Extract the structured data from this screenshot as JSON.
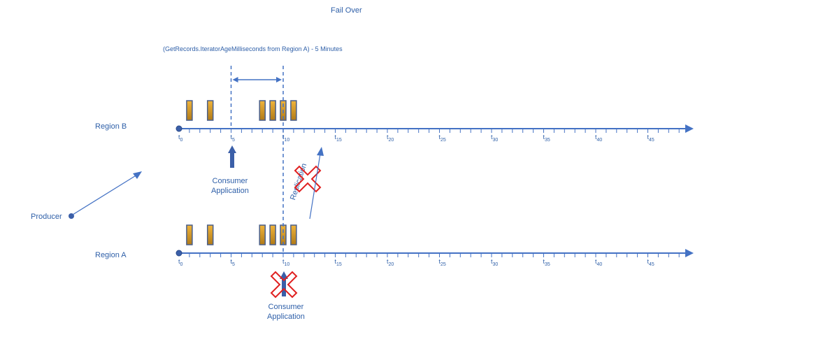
{
  "title": "Fail Over",
  "metric_note": "(GetRecords.IteratorAgeMilliseconds from Region A)  - 5 Minutes",
  "producer_label": "Producer",
  "replication_label": "Replication",
  "colors": {
    "line": "#4472c4",
    "text": "#2e5fa8",
    "record_fill_top": "#f0b43a",
    "record_fill_bottom": "#b07a18",
    "record_stroke": "#4a5f8a",
    "failure_x": "#e02020",
    "consumer_arrow": "#3b5fa8"
  },
  "timeline_labels": [
    {
      "t": "t",
      "sub": "0"
    },
    {
      "t": "t",
      "sub": "5"
    },
    {
      "t": "t",
      "sub": "10"
    },
    {
      "t": "t",
      "sub": "15"
    },
    {
      "t": "t",
      "sub": "20"
    },
    {
      "t": "t",
      "sub": "25"
    },
    {
      "t": "t",
      "sub": "30"
    },
    {
      "t": "t",
      "sub": "35"
    },
    {
      "t": "t",
      "sub": "40"
    },
    {
      "t": "t",
      "sub": "45"
    }
  ],
  "regions": [
    {
      "name": "Region B",
      "consumer_label_line1": "Consumer",
      "consumer_label_line2": "Application",
      "consumer_failed": false
    },
    {
      "name": "Region A",
      "consumer_label_line1": "Consumer",
      "consumer_label_line2": "Application",
      "consumer_failed": true
    }
  ]
}
